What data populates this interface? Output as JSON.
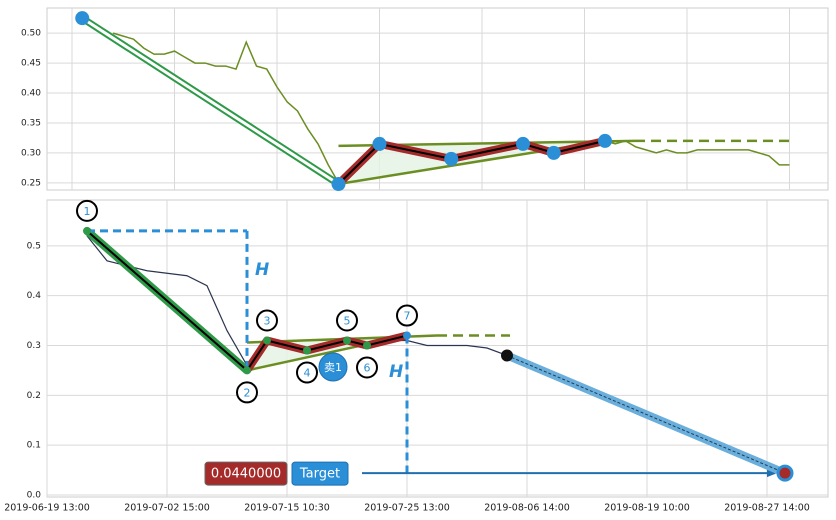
{
  "chart_data": [
    {
      "type": "line",
      "color": "#6b8e23",
      "pattern_color": "#2a8fd6",
      "zigzag_color": "#a52a2a",
      "categories": [
        null,
        null,
        null,
        null,
        null,
        null,
        null,
        null,
        null,
        null,
        null,
        null,
        null,
        null,
        null,
        null,
        null,
        null,
        null,
        null,
        null,
        null,
        null,
        null,
        null,
        null,
        null,
        null,
        null,
        null,
        null,
        null,
        null,
        null,
        null,
        null,
        null,
        null,
        null,
        null,
        null,
        null,
        null,
        null,
        null,
        null,
        null,
        null,
        null,
        null,
        null,
        null,
        null,
        null,
        null,
        null,
        null,
        null,
        null,
        null,
        null,
        null,
        null,
        null,
        null,
        null,
        null,
        null,
        null,
        null,
        null
      ],
      "values": [
        null,
        null,
        null,
        null,
        0.5,
        0.495,
        0.49,
        0.475,
        0.465,
        0.465,
        0.47,
        0.46,
        0.45,
        0.45,
        0.445,
        0.445,
        0.44,
        0.485,
        0.445,
        0.44,
        0.41,
        0.385,
        0.37,
        0.34,
        0.315,
        0.28,
        0.25,
        0.265,
        0.285,
        0.3,
        0.315,
        0.31,
        0.305,
        0.3,
        0.3,
        0.295,
        0.295,
        0.29,
        0.295,
        0.3,
        0.305,
        0.31,
        0.31,
        0.315,
        0.315,
        0.305,
        0.3,
        0.3,
        0.305,
        0.31,
        0.31,
        0.315,
        0.32,
        0.315,
        0.32,
        0.31,
        0.305,
        0.3,
        0.305,
        0.3,
        0.3,
        0.305,
        0.305,
        0.305,
        0.305,
        0.305,
        0.305,
        0.3,
        0.295,
        0.28,
        0.28
      ],
      "pattern_values": [
        null,
        0.525,
        null,
        null,
        null,
        null,
        null,
        null,
        null,
        null,
        null,
        null,
        null,
        null,
        null,
        null,
        null,
        null,
        null,
        null,
        null,
        null,
        null,
        null,
        null,
        null,
        0.248,
        null,
        null,
        null,
        0.315,
        null,
        null,
        null,
        null,
        null,
        null,
        0.29,
        null,
        null,
        null,
        null,
        null,
        null,
        0.315,
        null,
        null,
        0.3,
        null,
        null,
        null,
        null,
        0.32,
        null,
        null,
        null,
        null,
        null,
        null,
        null,
        null,
        null,
        null,
        null,
        null,
        null,
        null,
        null,
        null,
        null,
        null
      ],
      "ylim": [
        0.238,
        0.542
      ],
      "yticks": [
        0.25,
        {
          "value": 0.3,
          "label": "0.30"
        },
        0.35,
        {
          "value": 0.4,
          "label": "0.40"
        },
        0.45,
        {
          "value": 0.5,
          "label": "0.50"
        }
      ],
      "grid": true
    },
    {
      "type": "line",
      "color": "#2b3550",
      "pattern_color": "#2a8fd6",
      "zigzag_color": "#a52a2a",
      "categories": [
        "2019-06-19 13:00",
        null,
        null,
        null,
        null,
        null,
        "2019-07-02 15:00",
        null,
        null,
        null,
        null,
        null,
        "2019-07-15 10:30",
        null,
        null,
        null,
        null,
        null,
        "2019-07-25 13:00",
        null,
        null,
        null,
        null,
        null,
        "2019-08-06 14:00",
        null,
        null,
        null,
        null,
        null,
        "2019-08-19 10:00",
        null,
        null,
        null,
        null,
        null,
        "2019-08-27 14:00",
        null
      ],
      "values": [
        null,
        null,
        0.52,
        0.47,
        0.46,
        0.45,
        0.445,
        0.44,
        0.42,
        0.33,
        0.26,
        0.3,
        0.305,
        0.29,
        0.3,
        0.31,
        0.3,
        0.31,
        0.31,
        0.3,
        0.3,
        0.3,
        0.295,
        0.28,
        null,
        null,
        null,
        null,
        null,
        null,
        null,
        null,
        null,
        null,
        null,
        null,
        null,
        null
      ],
      "pattern_values": [
        null,
        null,
        0.53,
        null,
        null,
        null,
        null,
        null,
        null,
        null,
        0.25,
        0.31,
        null,
        0.29,
        null,
        0.31,
        0.3,
        null,
        0.32,
        null,
        null,
        null,
        null,
        null,
        null,
        null,
        null,
        null,
        null,
        null,
        null,
        null,
        null,
        null,
        null,
        null,
        null,
        null
      ],
      "pattern_labels": [
        null,
        null,
        "1",
        null,
        null,
        null,
        null,
        null,
        null,
        null,
        "2",
        "3",
        null,
        "4",
        null,
        "5",
        "6",
        null,
        "7",
        null,
        null,
        null,
        null,
        null,
        null,
        null,
        null,
        null,
        null,
        null,
        null,
        null,
        null,
        null,
        null,
        null,
        null,
        null
      ],
      "target": {
        "value": 0.044,
        "label": "0.0440000"
      },
      "target_text": "Target",
      "sell_label": "卖1",
      "h_labels": [
        "H",
        "H"
      ],
      "ylim": [
        -0.004,
        0.592
      ],
      "yticks": [
        {
          "value": 0,
          "label": "0.0"
        },
        0.1,
        0.2,
        0.3,
        0.4,
        0.5
      ],
      "grid": true
    }
  ]
}
